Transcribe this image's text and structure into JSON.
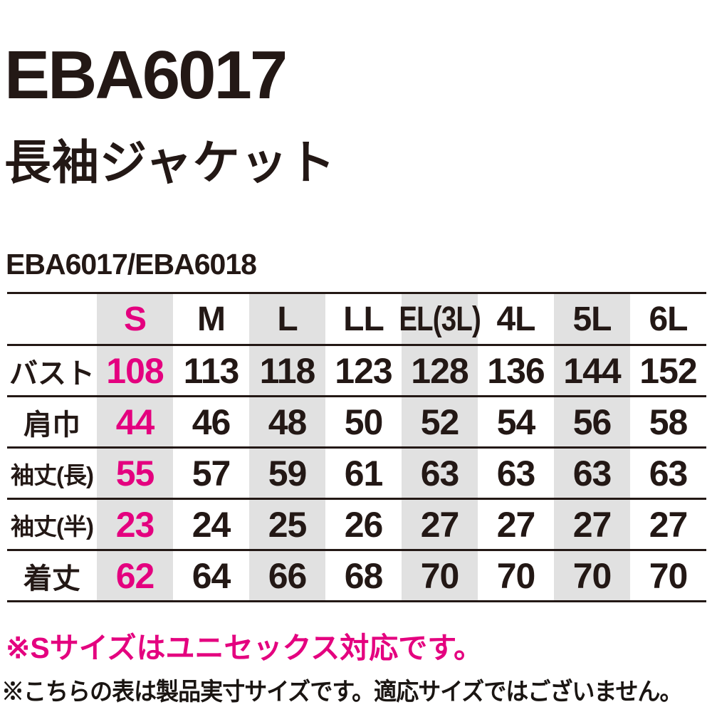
{
  "header": {
    "product_code": "EBA6017",
    "product_name": "長袖ジャケット",
    "models_line": "EBA6017/EBA6018"
  },
  "size_table": {
    "columns": [
      "S",
      "M",
      "L",
      "LL",
      "EL(3L)",
      "4L",
      "5L",
      "6L"
    ],
    "rows": [
      {
        "label": "バスト",
        "values": [
          "108",
          "113",
          "118",
          "123",
          "128",
          "136",
          "144",
          "152"
        ]
      },
      {
        "label": "肩巾",
        "values": [
          "44",
          "46",
          "48",
          "50",
          "52",
          "54",
          "56",
          "58"
        ]
      },
      {
        "label": "袖丈(長)",
        "values": [
          "55",
          "57",
          "59",
          "61",
          "63",
          "63",
          "63",
          "63"
        ]
      },
      {
        "label": "袖丈(半)",
        "values": [
          "23",
          "24",
          "25",
          "26",
          "27",
          "27",
          "27",
          "27"
        ]
      },
      {
        "label": "着丈",
        "values": [
          "62",
          "64",
          "66",
          "68",
          "70",
          "70",
          "70",
          "70"
        ]
      }
    ],
    "highlighted_column": "S"
  },
  "notes": {
    "unisex_note": "※Sサイズはユニセックス対応です。",
    "actual_size_note": "※こちらの表は製品実寸サイズです。適応サイズではございません。"
  },
  "colors": {
    "accent_pink": "#e4007f",
    "stripe_gray": "#e1e1e1",
    "text_black": "#231815"
  }
}
